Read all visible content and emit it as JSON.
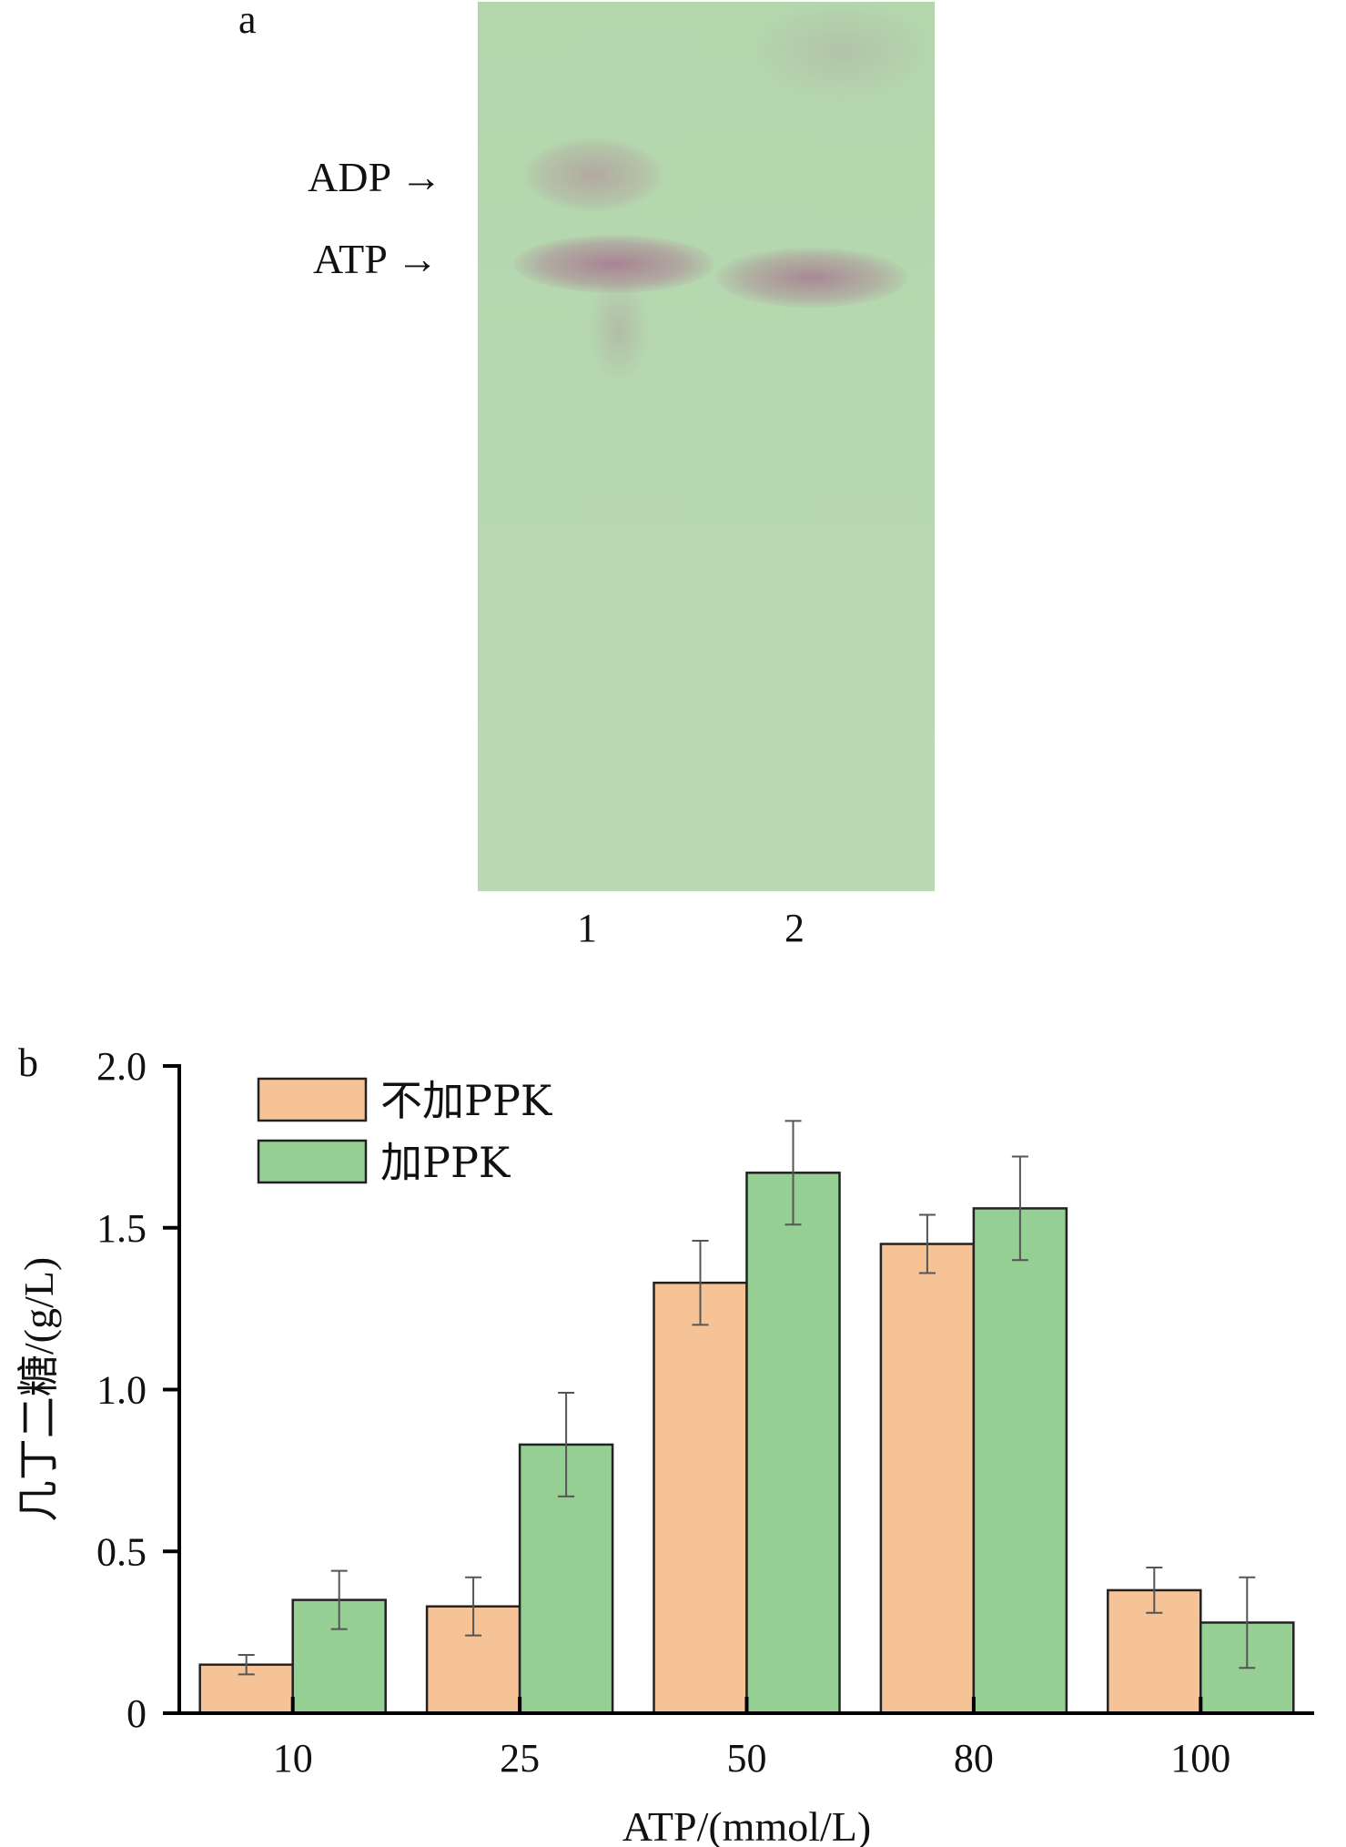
{
  "panel_a": {
    "letter": "a",
    "markers": {
      "adp": "ADP →",
      "atp": "ATP →"
    },
    "lanes": [
      "1",
      "2"
    ]
  },
  "panel_b": {
    "letter": "b"
  },
  "colors": {
    "no_ppk": "#f5c396",
    "with_ppk": "#95cf94",
    "bar_edge": "#222222",
    "plate": "#b6d8b0"
  },
  "chart_data": {
    "type": "bar",
    "categories": [
      "10",
      "25",
      "50",
      "80",
      "100"
    ],
    "series": [
      {
        "name": "不加PPK",
        "values": [
          0.15,
          0.33,
          1.33,
          1.45,
          0.38
        ],
        "errors": [
          0.03,
          0.09,
          0.13,
          0.09,
          0.07
        ]
      },
      {
        "name": "加PPK",
        "values": [
          0.35,
          0.83,
          1.67,
          1.56,
          0.28
        ],
        "errors": [
          0.09,
          0.16,
          0.16,
          0.16,
          0.14
        ]
      }
    ],
    "xlabel": "ATP/(mmol/L)",
    "ylabel": "几丁二糖/(g/L)",
    "ylim": [
      0,
      2.0
    ],
    "yticks": [
      "0",
      "0.5",
      "1.0",
      "1.5",
      "2.0"
    ],
    "ytick_values": [
      0,
      0.5,
      1.0,
      1.5,
      2.0
    ],
    "legend_position": "top-left",
    "grid": false
  }
}
